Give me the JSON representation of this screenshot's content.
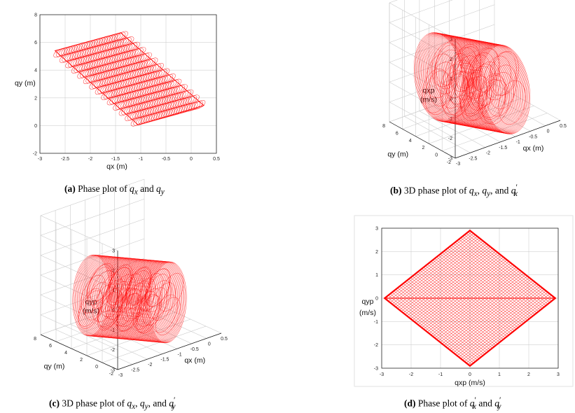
{
  "panels": [
    {
      "caption": {
        "letter": "(a)",
        "text": "Phase plot of",
        "v1": "q",
        "s1": "x",
        "mid": "and",
        "v2": "q",
        "s2": "y"
      }
    },
    {
      "caption": {
        "letter": "(b)",
        "text": "3D phase plot of",
        "v1": "q",
        "s1": "x",
        "v2": "q",
        "s2": "y",
        "mid": "and",
        "v3": "q",
        "s3": "x",
        "prime": "′"
      }
    },
    {
      "caption": {
        "letter": "(c)",
        "text": "3D phase plot of",
        "v1": "q",
        "s1": "x",
        "v2": "q",
        "s2": "y",
        "mid": "and",
        "v3": "q",
        "s3": "y",
        "prime": "′"
      }
    },
    {
      "caption": {
        "letter": "(d)",
        "text": "Phase plot of",
        "v1": "q",
        "s1": "x",
        "mid": "and",
        "v2": "q",
        "s2": "y",
        "prime": "′"
      }
    }
  ],
  "chart_data": [
    {
      "id": "a",
      "type": "line",
      "title": "",
      "xlabel": "qx (m)",
      "ylabel": "qy (m)",
      "xlim": [
        -3,
        0.5
      ],
      "ylim": [
        -2,
        8
      ],
      "xticks": [
        "-3",
        "-2.5",
        "-2",
        "-1.5",
        "-1",
        "-0.5",
        "0",
        "0.5"
      ],
      "yticks": [
        "-2",
        "0",
        "2",
        "4",
        "6",
        "8"
      ],
      "grid": true,
      "color": "#ff0000",
      "series": [
        {
          "name": "trajectory",
          "corners": [
            [
              -2.7,
              5.4
            ],
            [
              -1.4,
              6.7
            ],
            [
              0.25,
              1.45
            ],
            [
              -1.05,
              0.05
            ]
          ]
        }
      ]
    },
    {
      "id": "b",
      "type": "scatter",
      "xlabel": "qx (m)",
      "ylabel": "qxp\n(m/s)",
      "zlabel_lines": [
        "qxp",
        "(m/s)"
      ],
      "ylabel_floor": "qy (m)",
      "x_ticks": [
        "-3",
        "-2.5",
        "-2",
        "-1.5",
        "-1",
        "-0.5",
        "0",
        "0.5"
      ],
      "y_ticks": [
        "-2",
        "0",
        "2",
        "4",
        "6",
        "8"
      ],
      "z_ticks": [
        "-3",
        "-2",
        "-1",
        "0",
        "1",
        "2",
        "3"
      ],
      "zlim": [
        -3,
        3
      ],
      "color": "#ff0000",
      "shape": "cylinder"
    },
    {
      "id": "c",
      "type": "scatter",
      "xlabel": "qx (m)",
      "ylabel_floor": "qy (m)",
      "zlabel_lines": [
        "qyp",
        "(m/s)"
      ],
      "x_ticks": [
        "-3",
        "-2.5",
        "-2",
        "-1.5",
        "-1",
        "-0.5",
        "0",
        "0.5"
      ],
      "y_ticks": [
        "-2",
        "0",
        "2",
        "4",
        "6",
        "8"
      ],
      "z_ticks": [
        "-3",
        "-2",
        "-1",
        "0",
        "1",
        "2",
        "3"
      ],
      "zlim": [
        -3,
        3
      ],
      "color": "#ff0000",
      "shape": "cylinder"
    },
    {
      "id": "d",
      "type": "line",
      "xlabel": "qxp (m/s)",
      "ylabel_lines": [
        "qyp",
        "(m/s)"
      ],
      "xlim": [
        -3,
        3
      ],
      "ylim": [
        -3,
        3
      ],
      "xticks": [
        "-3",
        "-2",
        "-1",
        "0",
        "1",
        "2",
        "3"
      ],
      "yticks": [
        "-3",
        "-2",
        "-1",
        "0",
        "1",
        "2",
        "3"
      ],
      "grid": true,
      "color": "#ff0000",
      "series": [
        {
          "name": "diamond",
          "vertices": [
            [
              0,
              2.9
            ],
            [
              2.9,
              0
            ],
            [
              0,
              -2.9
            ],
            [
              -2.9,
              0
            ]
          ]
        }
      ]
    }
  ]
}
